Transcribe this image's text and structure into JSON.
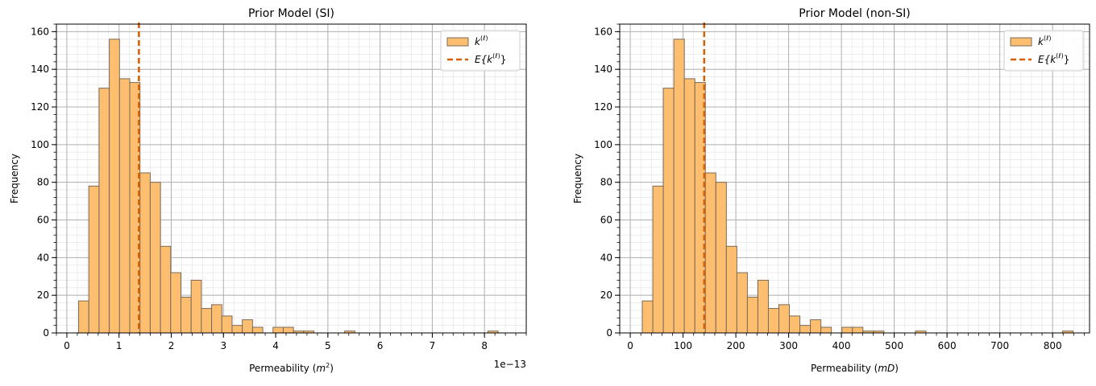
{
  "chart_data": [
    {
      "type": "bar",
      "title": "Prior Model (SI)",
      "xlabel": "Permeability ($m^2$)",
      "xlabel_text": "Permeability (",
      "xlabel_unit": "m",
      "xlabel_unit_sup": "2",
      "xlabel_close": ")",
      "ylabel": "Frequency",
      "offset_text": "1e−13",
      "xlim": [
        -0.2,
        8.8
      ],
      "ylim": [
        0,
        164
      ],
      "xticks": [
        0,
        1,
        2,
        3,
        4,
        5,
        6,
        7,
        8
      ],
      "xtick_labels": [
        "0",
        "1",
        "2",
        "3",
        "4",
        "5",
        "6",
        "7",
        "8"
      ],
      "yticks": [
        0,
        20,
        40,
        60,
        80,
        100,
        120,
        140,
        160
      ],
      "ytick_labels": [
        "0",
        "20",
        "40",
        "60",
        "80",
        "100",
        "120",
        "140",
        "160"
      ],
      "grid": true,
      "legend_position": "top-right",
      "legend": [
        {
          "kind": "patch",
          "base": "k",
          "sup": "(ℓ)",
          "color": "#fdbf6f"
        },
        {
          "kind": "dashed-line",
          "prefix": "E{",
          "base": "k",
          "sup": "(ℓ)",
          "suffix": "}",
          "color": "#d95f02"
        }
      ],
      "bin_edges": [
        0.225,
        0.421,
        0.617,
        0.813,
        1.009,
        1.205,
        1.401,
        1.597,
        1.793,
        1.989,
        2.185,
        2.381,
        2.577,
        2.773,
        2.969,
        3.165,
        3.361,
        3.557,
        3.753,
        3.949,
        4.145,
        4.341,
        4.537,
        4.733,
        4.929,
        5.125,
        5.321,
        5.517,
        5.713,
        5.909,
        6.105,
        6.301,
        6.497,
        6.693,
        6.889,
        7.085,
        7.281,
        7.477,
        7.673,
        7.869,
        8.065,
        8.261
      ],
      "counts": [
        17,
        78,
        130,
        156,
        135,
        133,
        85,
        80,
        46,
        32,
        19,
        28,
        13,
        15,
        9,
        4,
        7,
        3,
        0,
        3,
        3,
        1,
        1,
        0,
        0,
        0,
        1,
        0,
        0,
        0,
        0,
        0,
        0,
        0,
        0,
        0,
        0,
        0,
        0,
        0,
        1
      ],
      "mean": 1.38,
      "bar_color": "#fdbf6f",
      "edge_color": "#7a6a5a",
      "mean_color": "#d95f02"
    },
    {
      "type": "bar",
      "title": "Prior Model (non-SI)",
      "xlabel": "Permeability ($mD$)",
      "xlabel_text": "Permeability (",
      "xlabel_unit": "mD",
      "xlabel_unit_sup": "",
      "xlabel_close": ")",
      "ylabel": "Frequency",
      "offset_text": "",
      "xlim": [
        -20,
        870
      ],
      "ylim": [
        0,
        164
      ],
      "xticks": [
        0,
        100,
        200,
        300,
        400,
        500,
        600,
        700,
        800
      ],
      "xtick_labels": [
        "0",
        "100",
        "200",
        "300",
        "400",
        "500",
        "600",
        "700",
        "800"
      ],
      "yticks": [
        0,
        20,
        40,
        60,
        80,
        100,
        120,
        140,
        160
      ],
      "ytick_labels": [
        "0",
        "20",
        "40",
        "60",
        "80",
        "100",
        "120",
        "140",
        "160"
      ],
      "grid": true,
      "legend_position": "top-right",
      "legend": [
        {
          "kind": "patch",
          "base": "k",
          "sup": "(ℓ)",
          "color": "#fdbf6f"
        },
        {
          "kind": "dashed-line",
          "prefix": "E{",
          "base": "k",
          "sup": "(ℓ)",
          "suffix": "}",
          "color": "#d95f02"
        }
      ],
      "bin_edges": [
        22.8,
        42.7,
        62.6,
        82.5,
        102.4,
        122.3,
        142.2,
        162.1,
        182.0,
        201.9,
        221.8,
        241.7,
        261.6,
        281.5,
        301.4,
        321.3,
        341.2,
        361.1,
        381.0,
        400.9,
        420.8,
        440.7,
        460.6,
        480.5,
        500.4,
        520.3,
        540.2,
        560.1,
        580.0,
        599.9,
        619.8,
        639.7,
        659.6,
        679.5,
        699.4,
        719.3,
        739.2,
        759.1,
        779.0,
        798.9,
        818.8,
        838.7
      ],
      "counts": [
        17,
        78,
        130,
        156,
        135,
        133,
        85,
        80,
        46,
        32,
        19,
        28,
        13,
        15,
        9,
        4,
        7,
        3,
        0,
        3,
        3,
        1,
        1,
        0,
        0,
        0,
        1,
        0,
        0,
        0,
        0,
        0,
        0,
        0,
        0,
        0,
        0,
        0,
        0,
        0,
        1
      ],
      "mean": 140,
      "bar_color": "#fdbf6f",
      "edge_color": "#7a6a5a",
      "mean_color": "#d95f02"
    }
  ]
}
